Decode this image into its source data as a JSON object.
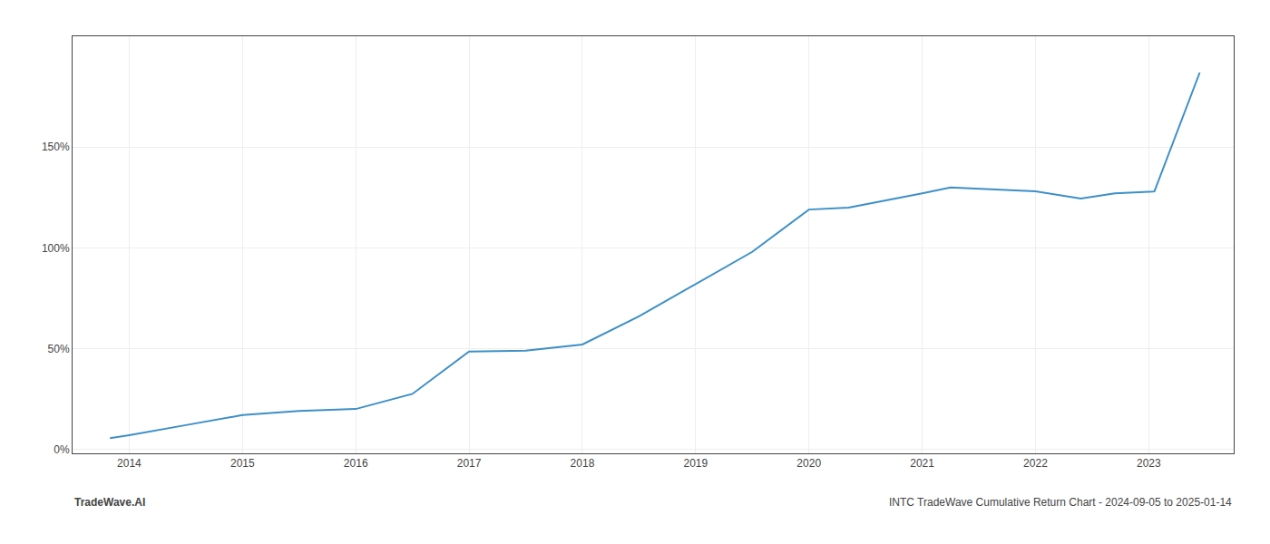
{
  "chart_data": {
    "type": "line",
    "x": [
      2013.83,
      2014.0,
      2014.5,
      2015.0,
      2015.5,
      2016.0,
      2016.5,
      2017.0,
      2017.5,
      2018.0,
      2018.5,
      2019.0,
      2019.5,
      2020.0,
      2020.35,
      2021.0,
      2021.25,
      2022.0,
      2022.4,
      2022.7,
      2023.05,
      2023.45
    ],
    "values": [
      0.055,
      0.07,
      0.12,
      0.17,
      0.19,
      0.2,
      0.275,
      0.485,
      0.49,
      0.52,
      0.66,
      0.82,
      0.98,
      1.19,
      1.2,
      1.27,
      1.3,
      1.28,
      1.245,
      1.27,
      1.28,
      1.87
    ],
    "color": "#3d8fc7",
    "xlim": [
      2013.5,
      2023.75
    ],
    "xticks": [
      2014,
      2015,
      2016,
      2017,
      2018,
      2019,
      2020,
      2021,
      2022,
      2023
    ],
    "ylim": [
      -0.02,
      2.05
    ],
    "yticks": [
      {
        "value": 0.0,
        "label": "0%"
      },
      {
        "value": 0.5,
        "label": "50%"
      },
      {
        "value": 1.0,
        "label": "100%"
      },
      {
        "value": 1.5,
        "label": "150%"
      }
    ],
    "grid": true,
    "annotations": [
      {
        "text": "TradeWave.AI"
      },
      {
        "text": "INTC TradeWave Cumulative Return Chart - 2024-09-05 to 2025-01-14"
      }
    ]
  }
}
